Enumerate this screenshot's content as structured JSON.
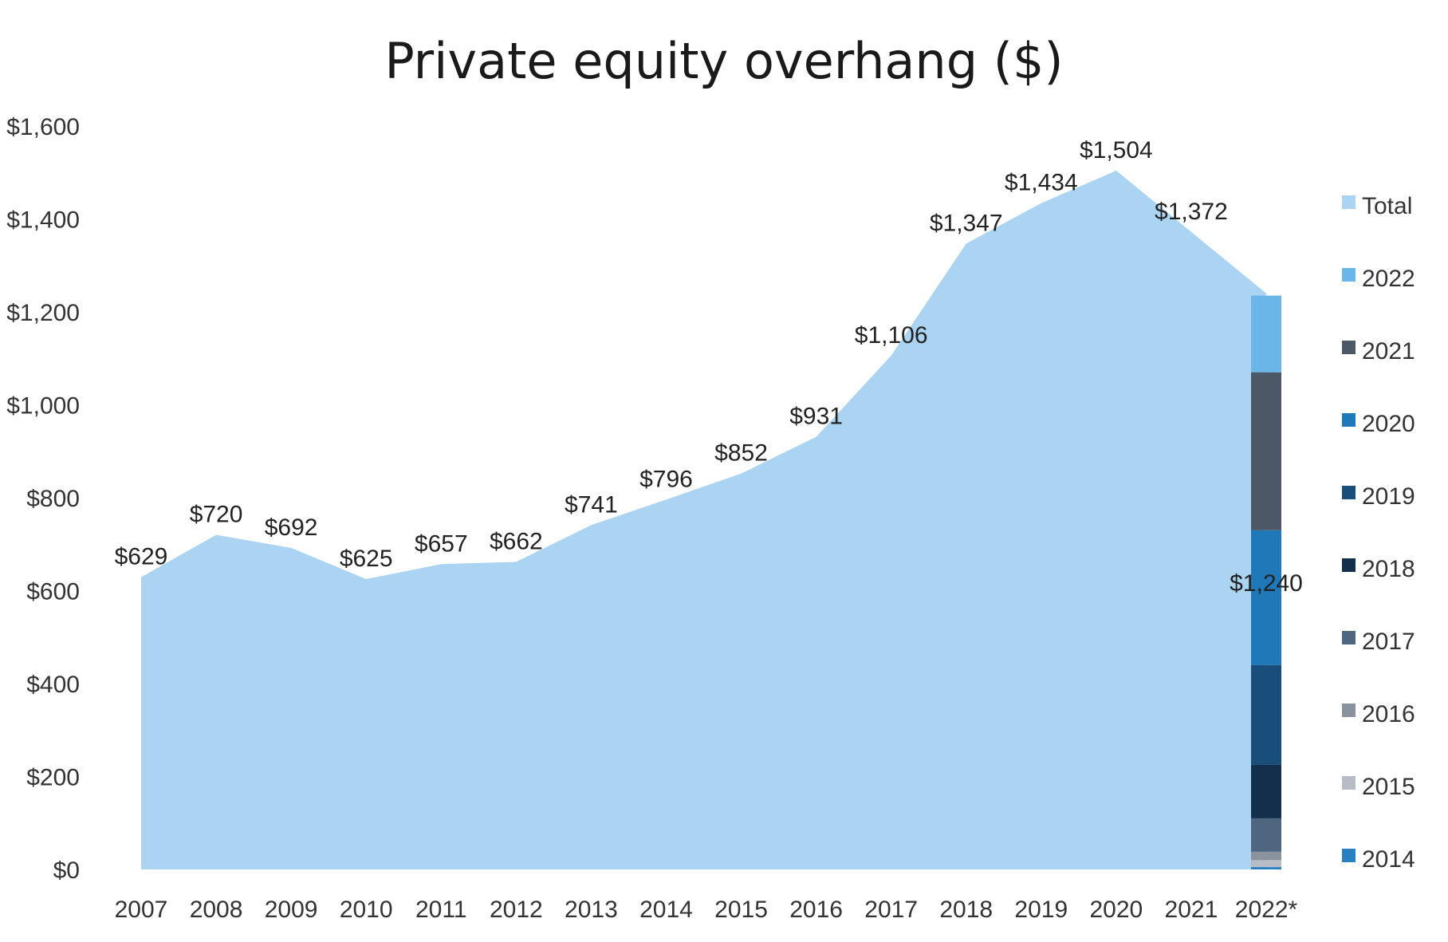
{
  "chart_data": {
    "type": "area",
    "title": "Private equity overhang ($)",
    "xlabel": "",
    "ylabel": "",
    "ylim": [
      0,
      1600
    ],
    "y_ticks": [
      0,
      200,
      400,
      600,
      800,
      1000,
      1200,
      1400,
      1600
    ],
    "y_tick_labels": [
      "$0",
      "$200",
      "$400",
      "$600",
      "$800",
      "$1,000",
      "$1,200",
      "$1,400",
      "$1,600"
    ],
    "categories": [
      "2007",
      "2008",
      "2009",
      "2010",
      "2011",
      "2012",
      "2013",
      "2014",
      "2015",
      "2016",
      "2017",
      "2018",
      "2019",
      "2020",
      "2021",
      "2022*"
    ],
    "grid": false,
    "legend_position": "right",
    "series": [
      {
        "name": "Total",
        "color": "#aad4f2",
        "values": [
          629,
          720,
          692,
          625,
          657,
          662,
          741,
          796,
          852,
          931,
          1106,
          1347,
          1434,
          1504,
          1372,
          1240
        ],
        "labels": [
          "$629",
          "$720",
          "$692",
          "$625",
          "$657",
          "$662",
          "$741",
          "$796",
          "$852",
          "$931",
          "$1,106",
          "$1,347",
          "$1,434",
          "$1,504",
          "$1,372",
          "$1,240"
        ]
      }
    ],
    "stacked_bar": {
      "category": "2022*",
      "segments": [
        {
          "name": "2014",
          "color": "#2a7fc0",
          "value": 5
        },
        {
          "name": "2015",
          "color": "#b8bcc4",
          "value": 15
        },
        {
          "name": "2016",
          "color": "#8a929e",
          "value": 18
        },
        {
          "name": "2017",
          "color": "#4e6680",
          "value": 72
        },
        {
          "name": "2018",
          "color": "#142f4c",
          "value": 115
        },
        {
          "name": "2019",
          "color": "#1a4e7a",
          "value": 215
        },
        {
          "name": "2020",
          "color": "#1f78b8",
          "value": 290
        },
        {
          "name": "2021",
          "color": "#4d5866",
          "value": 340
        },
        {
          "name": "2022",
          "color": "#6ab6e8",
          "value": 165
        }
      ]
    },
    "legend": [
      {
        "name": "Total",
        "color": "#aad4f2"
      },
      {
        "name": "2022",
        "color": "#6ab6e8"
      },
      {
        "name": "2021",
        "color": "#4d5866"
      },
      {
        "name": "2020",
        "color": "#1f78b8"
      },
      {
        "name": "2019",
        "color": "#1a4e7a"
      },
      {
        "name": "2018",
        "color": "#142f4c"
      },
      {
        "name": "2017",
        "color": "#4e6680"
      },
      {
        "name": "2016",
        "color": "#8a929e"
      },
      {
        "name": "2015",
        "color": "#b8bcc4"
      },
      {
        "name": "2014",
        "color": "#2a7fc0"
      }
    ]
  }
}
